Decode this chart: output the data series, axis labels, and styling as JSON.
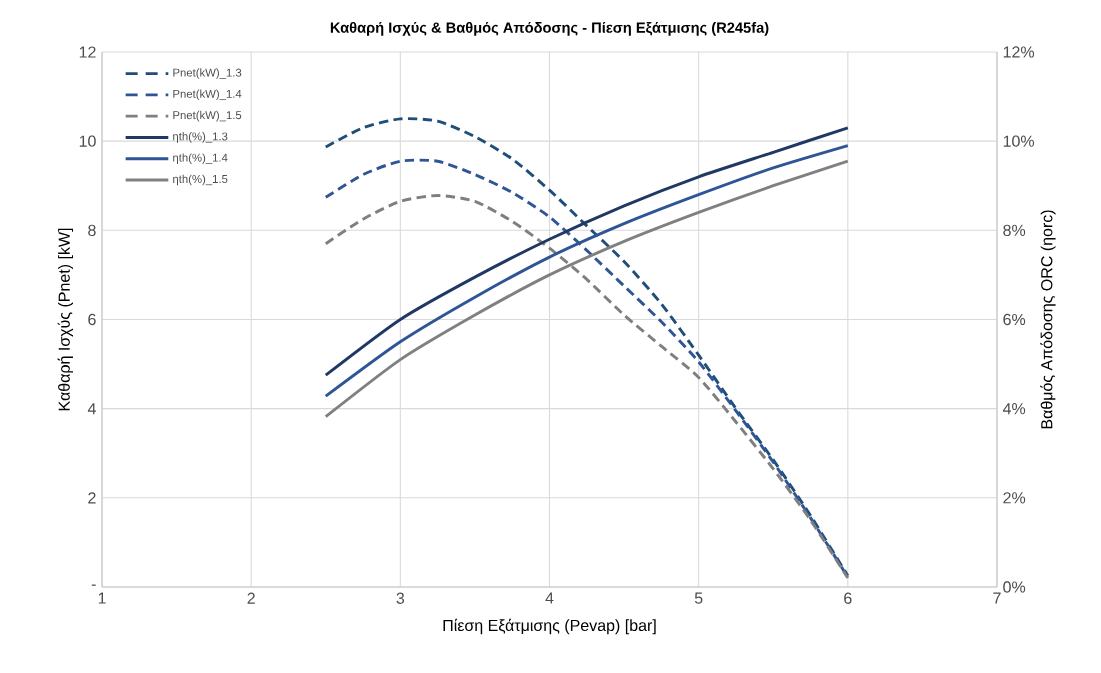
{
  "chart_data": {
    "type": "line",
    "title": "Καθαρή Ισχύς & Βαθμός Απόδοσης - Πίεση Εξάτμισης (R245fa)",
    "xlabel": "Πίεση Εξάτμισης (Pevap) [bar]",
    "ylabel": "Καθαρή Ισχύς (Pnet) [kW]",
    "y2label": "Βαθμός Απόδοσης ORC (ηorc)",
    "x": [
      2.5,
      2.75,
      3,
      3.25,
      3.5,
      3.75,
      4,
      4.25,
      4.5,
      4.75,
      5,
      5.25,
      5.5,
      5.75,
      6
    ],
    "series": [
      {
        "name": "Pnet(kW)_1.3",
        "color": "#1f4e79",
        "line_style": "dashed",
        "values": [
          9.87,
          10.3,
          10.5,
          10.45,
          10.1,
          9.6,
          8.9,
          8.1,
          7.3,
          6.35,
          5.2,
          4.0,
          2.85,
          1.6,
          0.25
        ]
      },
      {
        "name": "Pnet(kW)_1.4",
        "color": "#2f5597",
        "line_style": "dashed",
        "values": [
          8.74,
          9.25,
          9.55,
          9.55,
          9.25,
          8.85,
          8.3,
          7.55,
          6.75,
          5.95,
          5.05,
          3.95,
          2.8,
          1.55,
          0.22
        ]
      },
      {
        "name": "Pnet(kW)_1.5",
        "color": "#7f7f7f",
        "line_style": "dashed",
        "values": [
          7.7,
          8.25,
          8.65,
          8.78,
          8.65,
          8.2,
          7.6,
          6.9,
          6.1,
          5.4,
          4.7,
          3.7,
          2.65,
          1.5,
          0.2
        ]
      },
      {
        "name": "ηth(%)_1.3",
        "color": "#203864",
        "line_style": "solid",
        "axis": "y2",
        "x": [
          2.5,
          3,
          3.5,
          4,
          4.5,
          5,
          5.5,
          6
        ],
        "values": [
          4.75,
          6.0,
          6.95,
          7.8,
          8.55,
          9.2,
          9.75,
          10.3
        ]
      },
      {
        "name": "ηth(%)_1.4",
        "color": "#2f5597",
        "line_style": "solid",
        "axis": "y2",
        "x": [
          2.5,
          3,
          3.5,
          4,
          4.5,
          5,
          5.5,
          6
        ],
        "values": [
          4.28,
          5.5,
          6.5,
          7.4,
          8.15,
          8.8,
          9.4,
          9.9
        ]
      },
      {
        "name": "ηth(%)_1.5",
        "color": "#808080",
        "line_style": "solid",
        "axis": "y2",
        "x": [
          2.5,
          3,
          3.5,
          4,
          4.5,
          5,
          5.5,
          6
        ],
        "values": [
          3.82,
          5.1,
          6.1,
          7.0,
          7.75,
          8.4,
          9.0,
          9.55
        ]
      }
    ],
    "xlim": [
      1,
      7
    ],
    "xticks": [
      1,
      2,
      3,
      4,
      5,
      6,
      7
    ],
    "ylim": [
      0,
      12
    ],
    "yticks": [
      {
        "value": 0,
        "label": "-"
      },
      2,
      4,
      6,
      8,
      10,
      12
    ],
    "y2lim": [
      0,
      12
    ],
    "y2ticks": [
      {
        "value": 0,
        "label": "0%"
      },
      {
        "value": 2,
        "label": "2%"
      },
      {
        "value": 4,
        "label": "4%"
      },
      {
        "value": 6,
        "label": "6%"
      },
      {
        "value": 8,
        "label": "8%"
      },
      {
        "value": 10,
        "label": "10%"
      },
      {
        "value": 12,
        "label": "12%"
      }
    ],
    "grid": true,
    "legend": "top left"
  }
}
